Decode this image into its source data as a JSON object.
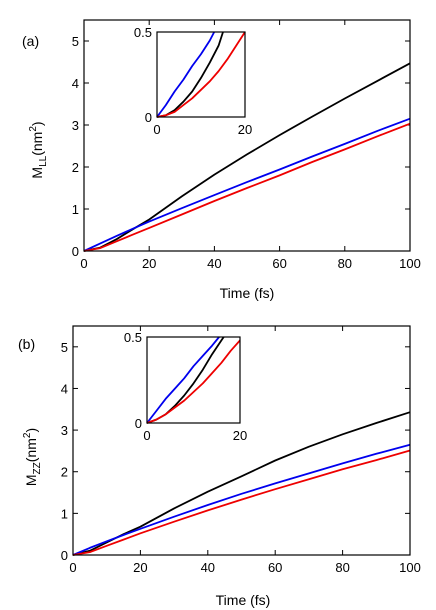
{
  "panels": [
    {
      "label": "(a)",
      "xlabel": "Time (fs)",
      "ylabel_main": "M",
      "ylabel_sub": "LL",
      "ylabel_tail": "(nm",
      "ylabel_sup": "2",
      "ylabel_close": ")"
    },
    {
      "label": "(b)",
      "xlabel": "Time (fs)",
      "ylabel_main": "M",
      "ylabel_sub": "ZZ",
      "ylabel_tail": "(nm",
      "ylabel_sup": "2",
      "ylabel_close": ")"
    }
  ],
  "chart_data": [
    {
      "type": "line",
      "panel": "(a)",
      "xlabel": "Time (fs)",
      "ylabel": "M_LL(nm^2)",
      "xlim": [
        0,
        100
      ],
      "ylim": [
        0,
        5.5
      ],
      "xticks": [
        "0",
        "20",
        "40",
        "60",
        "80",
        "100"
      ],
      "yticks": [
        "0",
        "1",
        "2",
        "3",
        "4",
        "5"
      ],
      "series": [
        {
          "color": "#000000",
          "x": [
            0,
            5,
            10,
            15,
            20,
            30,
            40,
            50,
            60,
            70,
            80,
            90,
            100
          ],
          "y": [
            0,
            0.08,
            0.28,
            0.52,
            0.75,
            1.3,
            1.82,
            2.3,
            2.76,
            3.2,
            3.63,
            4.05,
            4.47
          ]
        },
        {
          "color": "#0000ee",
          "x": [
            0,
            5,
            10,
            15,
            20,
            30,
            40,
            50,
            60,
            70,
            80,
            90,
            100
          ],
          "y": [
            0,
            0.18,
            0.36,
            0.53,
            0.7,
            1.02,
            1.33,
            1.64,
            1.94,
            2.25,
            2.55,
            2.86,
            3.15
          ]
        },
        {
          "color": "#ee0000",
          "x": [
            0,
            5,
            10,
            15,
            20,
            30,
            40,
            50,
            60,
            70,
            80,
            90,
            100
          ],
          "y": [
            0,
            0.07,
            0.23,
            0.39,
            0.55,
            0.87,
            1.19,
            1.5,
            1.8,
            2.12,
            2.42,
            2.73,
            3.03
          ]
        }
      ],
      "inset": {
        "xlim": [
          0,
          20
        ],
        "ylim": [
          0,
          0.5
        ],
        "xticks": [
          "0",
          "20"
        ],
        "yticks": [
          "0",
          "0.5"
        ],
        "series": [
          {
            "color": "#000000",
            "x": [
              0,
              2,
              4,
              6,
              8,
              10,
              12,
              14,
              15
            ],
            "y": [
              0,
              0.01,
              0.04,
              0.09,
              0.15,
              0.23,
              0.32,
              0.42,
              0.5
            ]
          },
          {
            "color": "#0000ee",
            "x": [
              0,
              2,
              4,
              6,
              8,
              10,
              12,
              13
            ],
            "y": [
              0,
              0.07,
              0.15,
              0.22,
              0.3,
              0.37,
              0.45,
              0.5
            ]
          },
          {
            "color": "#ee0000",
            "x": [
              0,
              2,
              4,
              6,
              8,
              10,
              12,
              14,
              16,
              18,
              20
            ],
            "y": [
              0,
              0.01,
              0.03,
              0.07,
              0.11,
              0.16,
              0.21,
              0.27,
              0.34,
              0.42,
              0.5
            ]
          }
        ]
      }
    },
    {
      "type": "line",
      "panel": "(b)",
      "xlabel": "Time (fs)",
      "ylabel": "M_ZZ(nm^2)",
      "xlim": [
        0,
        100
      ],
      "ylim": [
        0,
        5.5
      ],
      "xticks": [
        "0",
        "20",
        "40",
        "60",
        "80",
        "100"
      ],
      "yticks": [
        "0",
        "1",
        "2",
        "3",
        "4",
        "5"
      ],
      "series": [
        {
          "color": "#000000",
          "x": [
            0,
            5,
            10,
            15,
            20,
            30,
            40,
            50,
            60,
            70,
            80,
            90,
            100
          ],
          "y": [
            0,
            0.1,
            0.3,
            0.5,
            0.68,
            1.12,
            1.52,
            1.89,
            2.27,
            2.6,
            2.9,
            3.17,
            3.43
          ]
        },
        {
          "color": "#0000ee",
          "x": [
            0,
            5,
            10,
            15,
            20,
            30,
            40,
            50,
            60,
            70,
            80,
            90,
            100
          ],
          "y": [
            0,
            0.17,
            0.33,
            0.48,
            0.63,
            0.92,
            1.2,
            1.47,
            1.72,
            1.96,
            2.2,
            2.43,
            2.65
          ]
        },
        {
          "color": "#ee0000",
          "x": [
            0,
            5,
            10,
            15,
            20,
            30,
            40,
            50,
            60,
            70,
            80,
            90,
            100
          ],
          "y": [
            0,
            0.07,
            0.22,
            0.37,
            0.52,
            0.8,
            1.07,
            1.33,
            1.58,
            1.82,
            2.06,
            2.28,
            2.51
          ]
        }
      ],
      "inset": {
        "xlim": [
          0,
          20
        ],
        "ylim": [
          0,
          0.5
        ],
        "xticks": [
          "0",
          "20"
        ],
        "yticks": [
          "0",
          "0.5"
        ],
        "series": [
          {
            "color": "#000000",
            "x": [
              0,
              2,
              4,
              6,
              8,
              10,
              12,
              14,
              16,
              16.5
            ],
            "y": [
              0,
              0.02,
              0.05,
              0.1,
              0.16,
              0.23,
              0.31,
              0.4,
              0.48,
              0.5
            ]
          },
          {
            "color": "#0000ee",
            "x": [
              0,
              2,
              4,
              6,
              8,
              10,
              12,
              14,
              15.5
            ],
            "y": [
              0,
              0.07,
              0.14,
              0.2,
              0.26,
              0.33,
              0.39,
              0.45,
              0.5
            ]
          },
          {
            "color": "#ee0000",
            "x": [
              0,
              2,
              4,
              6,
              8,
              10,
              12,
              14,
              16,
              18,
              20
            ],
            "y": [
              0,
              0.02,
              0.05,
              0.09,
              0.13,
              0.18,
              0.23,
              0.29,
              0.35,
              0.42,
              0.48
            ]
          }
        ]
      }
    }
  ]
}
